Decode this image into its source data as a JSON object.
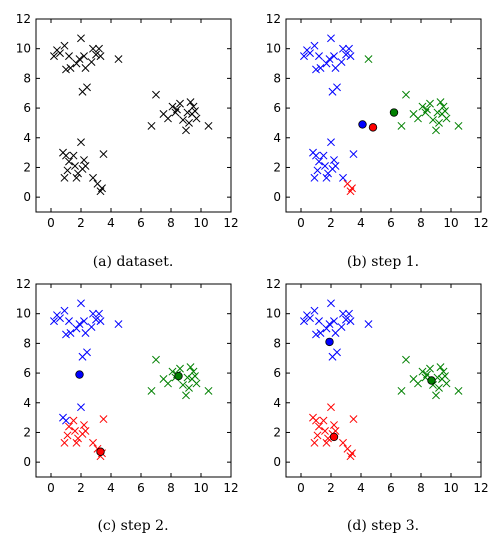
{
  "figure": {
    "panel_captions": [
      "(a) dataset.",
      "(b) step 1.",
      "(c) step 2.",
      "(d) step 3."
    ]
  },
  "colors": {
    "black": "#000000",
    "blue": "#0000ff",
    "red": "#ff0000",
    "green": "#008000"
  },
  "chart_data": [
    {
      "type": "scatter",
      "title": "(a) dataset.",
      "xlim": [
        -1,
        12
      ],
      "ylim": [
        -1,
        12
      ],
      "xticks": [
        0,
        2,
        4,
        6,
        8,
        10,
        12
      ],
      "yticks": [
        0,
        2,
        4,
        6,
        8,
        10,
        12
      ],
      "grid": false,
      "series": [
        {
          "marker": "x",
          "color": "#000000",
          "points": [
            [
              0.2,
              9.5
            ],
            [
              0.4,
              9.9
            ],
            [
              0.6,
              9.7
            ],
            [
              0.9,
              10.2
            ],
            [
              1.0,
              8.6
            ],
            [
              1.2,
              9.5
            ],
            [
              1.3,
              8.7
            ],
            [
              1.7,
              9.0
            ],
            [
              1.9,
              9.3
            ],
            [
              2.0,
              10.7
            ],
            [
              2.2,
              9.5
            ],
            [
              2.3,
              8.7
            ],
            [
              2.1,
              7.1
            ],
            [
              2.4,
              7.4
            ],
            [
              2.7,
              9.1
            ],
            [
              2.8,
              10.0
            ],
            [
              3.0,
              9.6
            ],
            [
              3.3,
              9.5
            ],
            [
              3.2,
              10.0
            ],
            [
              4.5,
              9.3
            ],
            [
              0.8,
              3.0
            ],
            [
              1.0,
              2.8
            ],
            [
              1.2,
              2.4
            ],
            [
              1.5,
              2.8
            ],
            [
              1.6,
              2.1
            ],
            [
              1.1,
              1.8
            ],
            [
              1.7,
              1.3
            ],
            [
              1.8,
              1.6
            ],
            [
              2.1,
              1.9
            ],
            [
              2.2,
              2.5
            ],
            [
              2.0,
              3.7
            ],
            [
              2.3,
              2.1
            ],
            [
              2.8,
              1.3
            ],
            [
              3.1,
              0.9
            ],
            [
              3.3,
              0.4
            ],
            [
              3.4,
              0.6
            ],
            [
              3.5,
              2.9
            ],
            [
              0.9,
              1.3
            ],
            [
              6.7,
              4.8
            ],
            [
              7.0,
              6.9
            ],
            [
              7.5,
              5.6
            ],
            [
              7.8,
              5.3
            ],
            [
              8.1,
              6.1
            ],
            [
              8.4,
              5.9
            ],
            [
              8.6,
              6.3
            ],
            [
              8.8,
              5.2
            ],
            [
              9.0,
              4.5
            ],
            [
              9.2,
              5.0
            ],
            [
              9.3,
              6.4
            ],
            [
              9.4,
              5.6
            ],
            [
              9.5,
              6.1
            ],
            [
              9.6,
              5.8
            ],
            [
              9.7,
              5.3
            ],
            [
              10.5,
              4.8
            ],
            [
              8.3,
              5.7
            ],
            [
              9.1,
              5.7
            ]
          ]
        }
      ]
    },
    {
      "type": "scatter",
      "title": "(b) step 1.",
      "xlim": [
        -1,
        12
      ],
      "ylim": [
        -1,
        12
      ],
      "xticks": [
        0,
        2,
        4,
        6,
        8,
        10,
        12
      ],
      "yticks": [
        0,
        2,
        4,
        6,
        8,
        10,
        12
      ],
      "grid": false,
      "series": [
        {
          "marker": "x",
          "color": "#0000ff",
          "points": [
            [
              0.2,
              9.5
            ],
            [
              0.4,
              9.9
            ],
            [
              0.6,
              9.7
            ],
            [
              0.9,
              10.2
            ],
            [
              1.0,
              8.6
            ],
            [
              1.2,
              9.5
            ],
            [
              1.3,
              8.7
            ],
            [
              1.7,
              9.0
            ],
            [
              1.9,
              9.3
            ],
            [
              2.0,
              10.7
            ],
            [
              2.2,
              9.5
            ],
            [
              2.3,
              8.7
            ],
            [
              2.1,
              7.1
            ],
            [
              2.4,
              7.4
            ],
            [
              2.7,
              9.1
            ],
            [
              2.8,
              10.0
            ],
            [
              3.0,
              9.6
            ],
            [
              3.3,
              9.5
            ],
            [
              3.2,
              10.0
            ],
            [
              0.8,
              3.0
            ],
            [
              1.0,
              2.8
            ],
            [
              1.2,
              2.4
            ],
            [
              1.5,
              2.8
            ],
            [
              1.6,
              2.1
            ],
            [
              1.1,
              1.8
            ],
            [
              1.7,
              1.3
            ],
            [
              1.8,
              1.6
            ],
            [
              2.1,
              1.9
            ],
            [
              2.2,
              2.5
            ],
            [
              2.0,
              3.7
            ],
            [
              2.3,
              2.1
            ],
            [
              2.8,
              1.3
            ],
            [
              3.5,
              2.9
            ],
            [
              0.9,
              1.3
            ]
          ]
        },
        {
          "marker": "x",
          "color": "#ff0000",
          "points": [
            [
              3.1,
              0.9
            ],
            [
              3.3,
              0.4
            ],
            [
              3.4,
              0.6
            ]
          ]
        },
        {
          "marker": "x",
          "color": "#008000",
          "points": [
            [
              4.5,
              9.3
            ],
            [
              6.7,
              4.8
            ],
            [
              7.0,
              6.9
            ],
            [
              7.5,
              5.6
            ],
            [
              7.8,
              5.3
            ],
            [
              8.1,
              6.1
            ],
            [
              8.4,
              5.9
            ],
            [
              8.6,
              6.3
            ],
            [
              8.8,
              5.2
            ],
            [
              9.0,
              4.5
            ],
            [
              9.2,
              5.0
            ],
            [
              9.3,
              6.4
            ],
            [
              9.4,
              5.6
            ],
            [
              9.5,
              6.1
            ],
            [
              9.6,
              5.8
            ],
            [
              9.7,
              5.3
            ],
            [
              10.5,
              4.8
            ],
            [
              8.3,
              5.7
            ],
            [
              9.1,
              5.7
            ]
          ]
        },
        {
          "marker": "o",
          "color": "#0000ff",
          "points": [
            [
              4.1,
              4.9
            ]
          ]
        },
        {
          "marker": "o",
          "color": "#ff0000",
          "points": [
            [
              4.8,
              4.7
            ]
          ]
        },
        {
          "marker": "o",
          "color": "#008000",
          "points": [
            [
              6.2,
              5.7
            ]
          ]
        }
      ]
    },
    {
      "type": "scatter",
      "title": "(c) step 2.",
      "xlim": [
        -1,
        12
      ],
      "ylim": [
        -1,
        12
      ],
      "xticks": [
        0,
        2,
        4,
        6,
        8,
        10,
        12
      ],
      "yticks": [
        0,
        2,
        4,
        6,
        8,
        10,
        12
      ],
      "grid": false,
      "series": [
        {
          "marker": "x",
          "color": "#0000ff",
          "points": [
            [
              0.2,
              9.5
            ],
            [
              0.4,
              9.9
            ],
            [
              0.6,
              9.7
            ],
            [
              0.9,
              10.2
            ],
            [
              1.0,
              8.6
            ],
            [
              1.2,
              9.5
            ],
            [
              1.3,
              8.7
            ],
            [
              1.7,
              9.0
            ],
            [
              1.9,
              9.3
            ],
            [
              2.0,
              10.7
            ],
            [
              2.2,
              9.5
            ],
            [
              2.3,
              8.7
            ],
            [
              2.1,
              7.1
            ],
            [
              2.4,
              7.4
            ],
            [
              2.7,
              9.1
            ],
            [
              2.8,
              10.0
            ],
            [
              3.0,
              9.6
            ],
            [
              3.3,
              9.5
            ],
            [
              3.2,
              10.0
            ],
            [
              4.5,
              9.3
            ],
            [
              2.0,
              3.7
            ],
            [
              0.8,
              3.0
            ],
            [
              1.0,
              2.8
            ]
          ]
        },
        {
          "marker": "x",
          "color": "#ff0000",
          "points": [
            [
              1.2,
              2.4
            ],
            [
              1.5,
              2.8
            ],
            [
              1.6,
              2.1
            ],
            [
              1.1,
              1.8
            ],
            [
              1.7,
              1.3
            ],
            [
              1.8,
              1.6
            ],
            [
              2.1,
              1.9
            ],
            [
              2.2,
              2.5
            ],
            [
              2.3,
              2.1
            ],
            [
              2.8,
              1.3
            ],
            [
              3.1,
              0.9
            ],
            [
              3.3,
              0.4
            ],
            [
              3.4,
              0.6
            ],
            [
              3.5,
              2.9
            ],
            [
              0.9,
              1.3
            ]
          ]
        },
        {
          "marker": "x",
          "color": "#008000",
          "points": [
            [
              6.7,
              4.8
            ],
            [
              7.0,
              6.9
            ],
            [
              7.5,
              5.6
            ],
            [
              7.8,
              5.3
            ],
            [
              8.1,
              6.1
            ],
            [
              8.4,
              5.9
            ],
            [
              8.6,
              6.3
            ],
            [
              8.8,
              5.2
            ],
            [
              9.0,
              4.5
            ],
            [
              9.2,
              5.0
            ],
            [
              9.3,
              6.4
            ],
            [
              9.4,
              5.6
            ],
            [
              9.5,
              6.1
            ],
            [
              9.6,
              5.8
            ],
            [
              9.7,
              5.3
            ],
            [
              10.5,
              4.8
            ],
            [
              8.3,
              5.7
            ],
            [
              9.1,
              5.7
            ]
          ]
        },
        {
          "marker": "o",
          "color": "#0000ff",
          "points": [
            [
              1.9,
              5.9
            ]
          ]
        },
        {
          "marker": "o",
          "color": "#ff0000",
          "points": [
            [
              3.3,
              0.7
            ]
          ]
        },
        {
          "marker": "o",
          "color": "#008000",
          "points": [
            [
              8.5,
              5.8
            ]
          ]
        }
      ]
    },
    {
      "type": "scatter",
      "title": "(d) step 3.",
      "xlim": [
        -1,
        12
      ],
      "ylim": [
        -1,
        12
      ],
      "xticks": [
        0,
        2,
        4,
        6,
        8,
        10,
        12
      ],
      "yticks": [
        0,
        2,
        4,
        6,
        8,
        10,
        12
      ],
      "grid": false,
      "series": [
        {
          "marker": "x",
          "color": "#0000ff",
          "points": [
            [
              0.2,
              9.5
            ],
            [
              0.4,
              9.9
            ],
            [
              0.6,
              9.7
            ],
            [
              0.9,
              10.2
            ],
            [
              1.0,
              8.6
            ],
            [
              1.2,
              9.5
            ],
            [
              1.3,
              8.7
            ],
            [
              1.7,
              9.0
            ],
            [
              1.9,
              9.3
            ],
            [
              2.0,
              10.7
            ],
            [
              2.2,
              9.5
            ],
            [
              2.3,
              8.7
            ],
            [
              2.1,
              7.1
            ],
            [
              2.4,
              7.4
            ],
            [
              2.7,
              9.1
            ],
            [
              2.8,
              10.0
            ],
            [
              3.0,
              9.6
            ],
            [
              3.3,
              9.5
            ],
            [
              3.2,
              10.0
            ],
            [
              4.5,
              9.3
            ]
          ]
        },
        {
          "marker": "x",
          "color": "#ff0000",
          "points": [
            [
              0.8,
              3.0
            ],
            [
              1.0,
              2.8
            ],
            [
              1.2,
              2.4
            ],
            [
              1.5,
              2.8
            ],
            [
              1.6,
              2.1
            ],
            [
              1.1,
              1.8
            ],
            [
              1.7,
              1.3
            ],
            [
              1.8,
              1.6
            ],
            [
              2.1,
              1.9
            ],
            [
              2.2,
              2.5
            ],
            [
              2.0,
              3.7
            ],
            [
              2.3,
              2.1
            ],
            [
              2.8,
              1.3
            ],
            [
              3.1,
              0.9
            ],
            [
              3.3,
              0.4
            ],
            [
              3.4,
              0.6
            ],
            [
              3.5,
              2.9
            ],
            [
              0.9,
              1.3
            ]
          ]
        },
        {
          "marker": "x",
          "color": "#008000",
          "points": [
            [
              6.7,
              4.8
            ],
            [
              7.0,
              6.9
            ],
            [
              7.5,
              5.6
            ],
            [
              7.8,
              5.3
            ],
            [
              8.1,
              6.1
            ],
            [
              8.4,
              5.9
            ],
            [
              8.6,
              6.3
            ],
            [
              8.8,
              5.2
            ],
            [
              9.0,
              4.5
            ],
            [
              9.2,
              5.0
            ],
            [
              9.3,
              6.4
            ],
            [
              9.4,
              5.6
            ],
            [
              9.5,
              6.1
            ],
            [
              9.6,
              5.8
            ],
            [
              9.7,
              5.3
            ],
            [
              10.5,
              4.8
            ],
            [
              8.3,
              5.7
            ],
            [
              9.1,
              5.7
            ]
          ]
        },
        {
          "marker": "o",
          "color": "#0000ff",
          "points": [
            [
              1.9,
              8.1
            ]
          ]
        },
        {
          "marker": "o",
          "color": "#ff0000",
          "points": [
            [
              2.2,
              1.7
            ]
          ]
        },
        {
          "marker": "o",
          "color": "#008000",
          "points": [
            [
              8.7,
              5.5
            ]
          ]
        }
      ]
    }
  ]
}
